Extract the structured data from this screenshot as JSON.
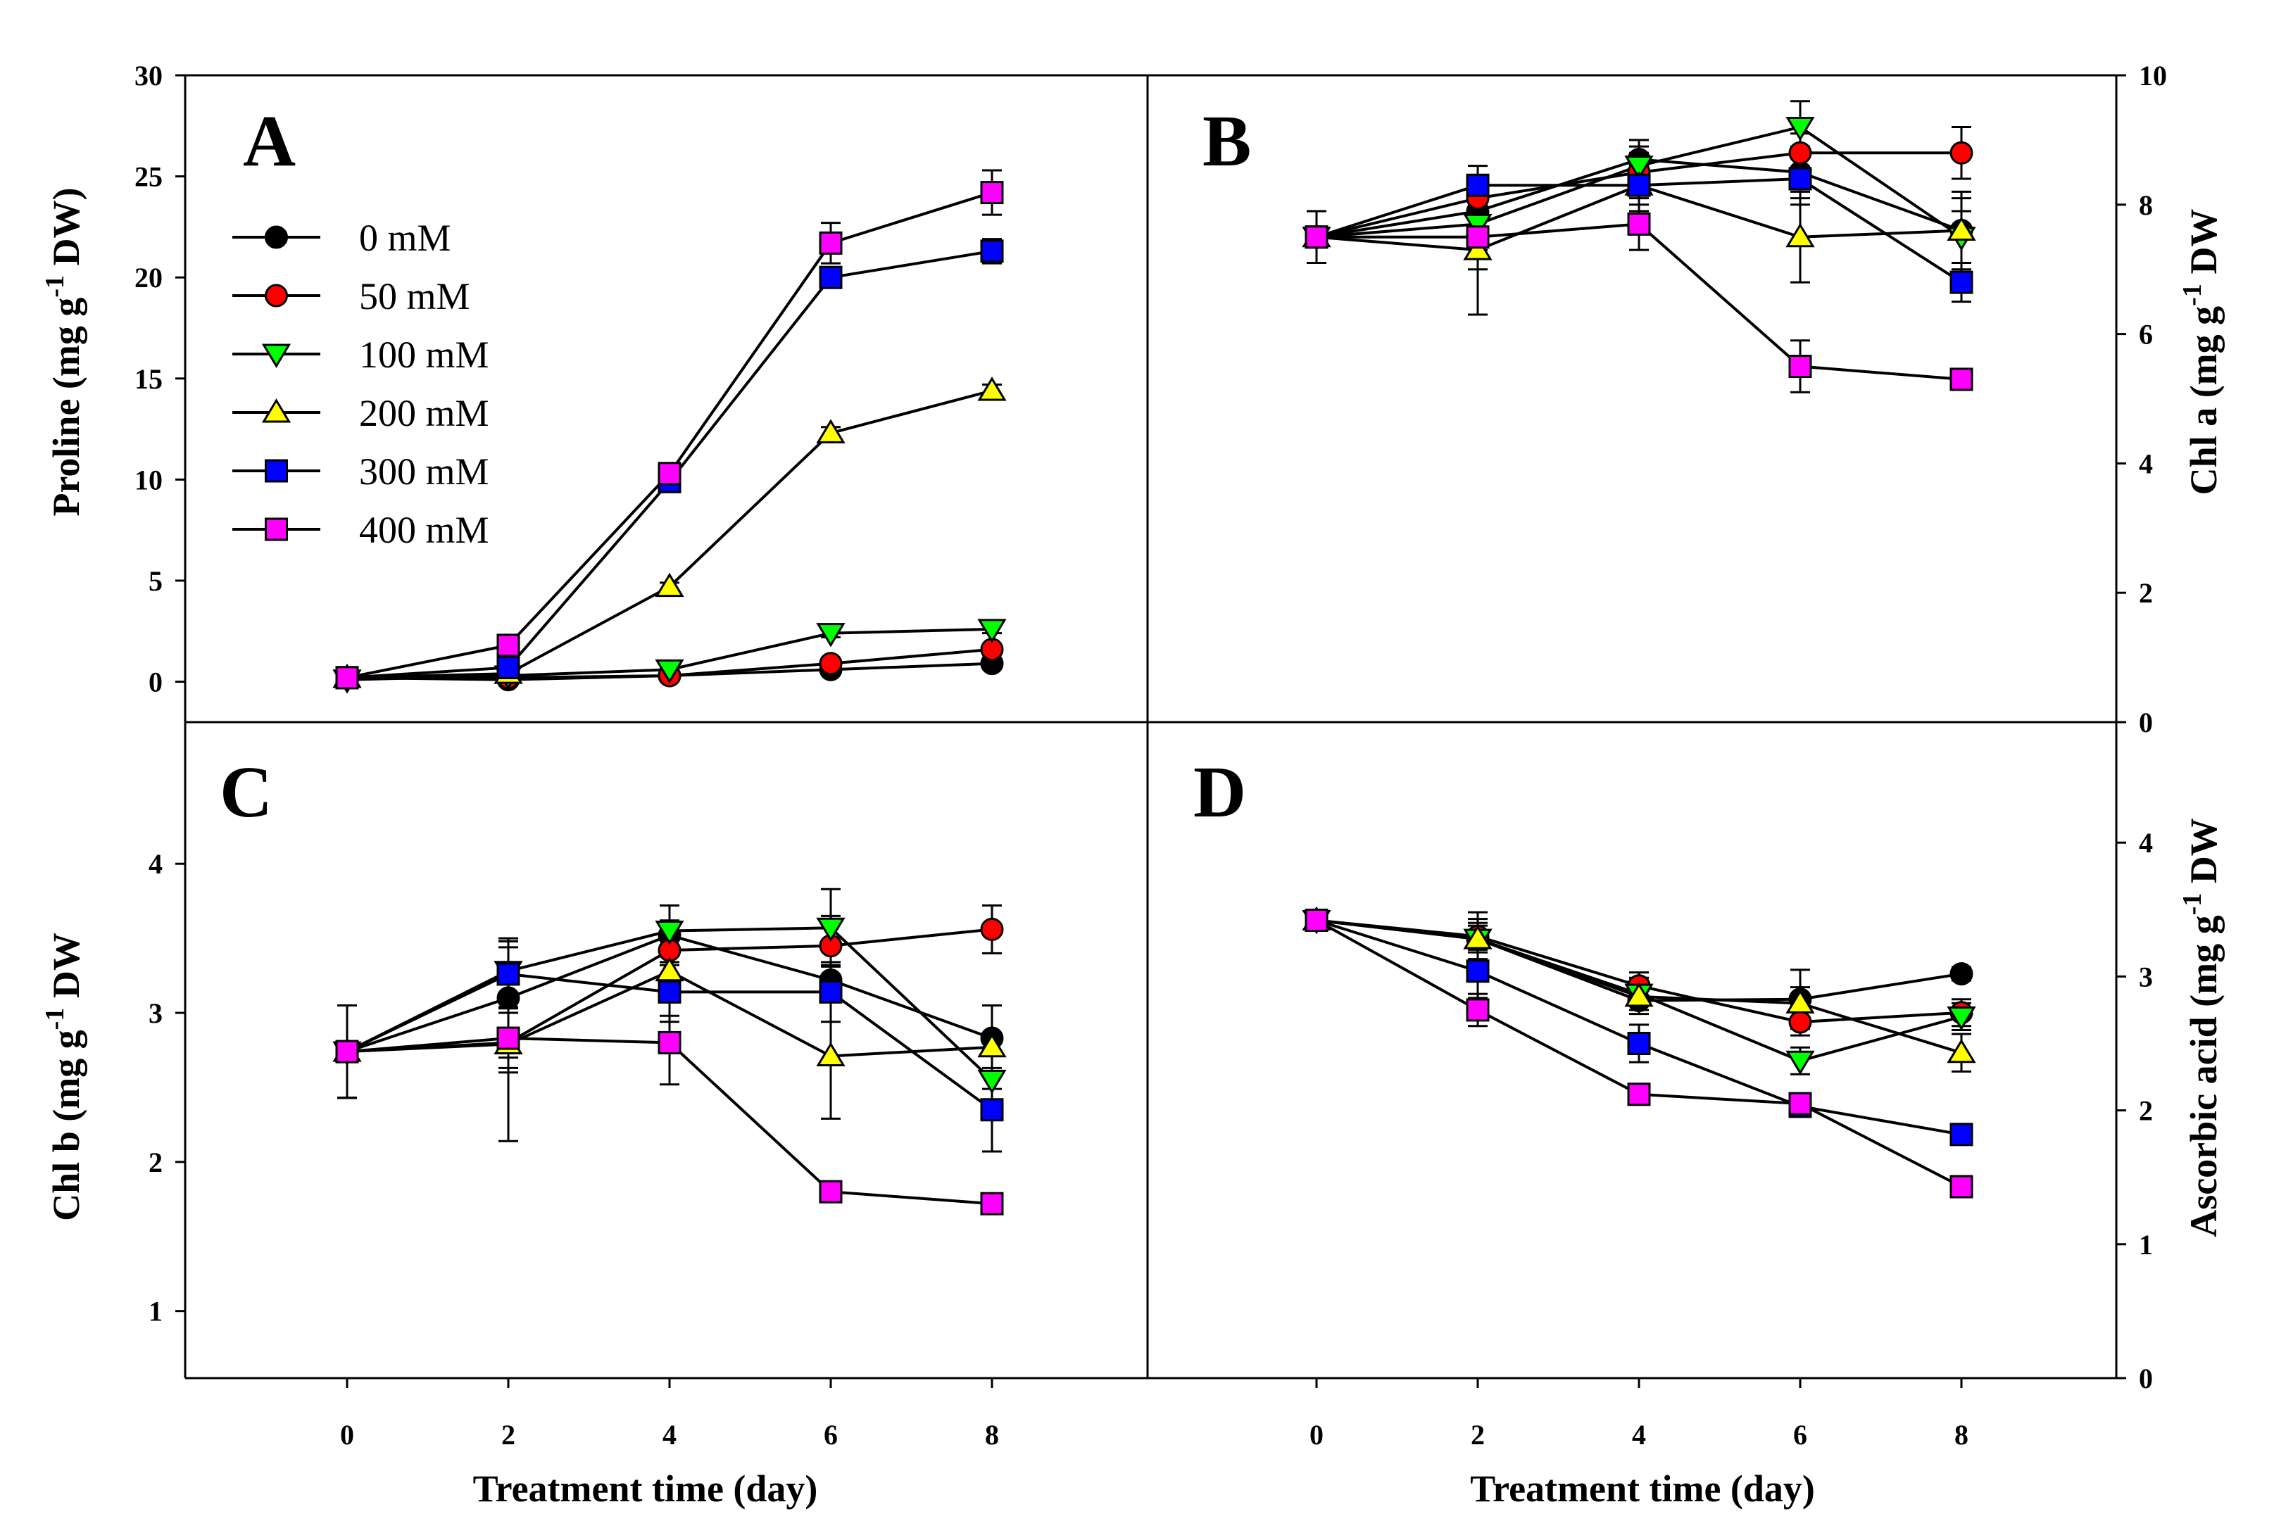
{
  "chart_data": {
    "type": "line",
    "x": [
      0,
      2,
      4,
      6,
      8
    ],
    "xticks": [
      "0",
      "2",
      "4",
      "6",
      "8"
    ],
    "xlabel": "Treatment time (day)",
    "legend": [
      {
        "name": "0 mM",
        "color": "#000000",
        "marker": "circle"
      },
      {
        "name": "50 mM",
        "color": "#ff0000",
        "marker": "circle"
      },
      {
        "name": "100 mM",
        "color": "#00ff00",
        "marker": "triangle-down"
      },
      {
        "name": "200 mM",
        "color": "#ffff00",
        "marker": "triangle-up"
      },
      {
        "name": "300 mM",
        "color": "#0000ff",
        "marker": "square"
      },
      {
        "name": "400 mM",
        "color": "#ff00ff",
        "marker": "square"
      }
    ],
    "panels": [
      {
        "id": "A",
        "ylabel": "Proline (mg g-1 DW)",
        "ylabel_main": "Proline (mg g",
        "ylabel_sup": "-1",
        "ylabel_tail": " DW)",
        "ylim": [
          -2,
          30
        ],
        "yticks": [
          0,
          5,
          10,
          15,
          20,
          25,
          30
        ],
        "series": [
          {
            "name": "0 mM",
            "values": [
              0.2,
              0.1,
              0.3,
              0.6,
              0.9
            ],
            "errors": [
              0.1,
              0.1,
              0.1,
              0.1,
              0.2
            ]
          },
          {
            "name": "50 mM",
            "values": [
              0.2,
              0.2,
              0.3,
              0.9,
              1.6
            ],
            "errors": [
              0.1,
              0.1,
              0.1,
              0.1,
              0.2
            ]
          },
          {
            "name": "100 mM",
            "values": [
              0.1,
              0.3,
              0.6,
              2.4,
              2.6
            ],
            "errors": [
              0.1,
              0.1,
              0.1,
              0.2,
              0.2
            ]
          },
          {
            "name": "200 mM",
            "values": [
              0.2,
              0.4,
              4.7,
              12.3,
              14.4
            ],
            "errors": [
              0.1,
              0.1,
              0.2,
              0.3,
              0.3
            ]
          },
          {
            "name": "300 mM",
            "values": [
              0.2,
              0.7,
              9.9,
              20.0,
              21.3
            ],
            "errors": [
              0.1,
              0.1,
              0.3,
              0.5,
              0.6
            ]
          },
          {
            "name": "400 mM",
            "values": [
              0.2,
              1.8,
              10.3,
              21.7,
              24.2
            ],
            "errors": [
              0.1,
              0.2,
              0.4,
              1.0,
              1.1
            ]
          }
        ]
      },
      {
        "id": "B",
        "ylabel": "Chl a (mg g-1 DW)",
        "ylabel_main": "Chl a (mg g",
        "ylabel_sup": "-1",
        "ylabel_tail": " DW",
        "ylim": [
          0,
          10
        ],
        "yticks": [
          0,
          2,
          4,
          6,
          8,
          10
        ],
        "series": [
          {
            "name": "0 mM",
            "values": [
              7.5,
              7.9,
              8.7,
              8.5,
              7.6
            ],
            "errors": [
              0.4,
              0.4,
              0.3,
              0.4,
              0.6
            ]
          },
          {
            "name": "50 mM",
            "values": [
              7.5,
              8.1,
              8.5,
              8.8,
              8.8
            ],
            "errors": [
              0.4,
              0.3,
              0.3,
              0.3,
              0.4
            ]
          },
          {
            "name": "100 mM",
            "values": [
              7.5,
              7.7,
              8.6,
              9.2,
              7.5
            ],
            "errors": [
              0.4,
              0.4,
              0.3,
              0.4,
              0.4
            ]
          },
          {
            "name": "200 mM",
            "values": [
              7.5,
              7.3,
              8.3,
              7.5,
              7.6
            ],
            "errors": [
              0.4,
              1.0,
              0.4,
              0.7,
              0.5
            ]
          },
          {
            "name": "300 mM",
            "values": [
              7.5,
              8.3,
              8.3,
              8.4,
              6.8
            ],
            "errors": [
              0.4,
              0.3,
              0.3,
              0.4,
              0.3
            ]
          },
          {
            "name": "400 mM",
            "values": [
              7.5,
              7.5,
              7.7,
              5.5,
              5.3
            ],
            "errors": [
              0.4,
              0.5,
              0.4,
              0.4,
              0.15
            ]
          }
        ]
      },
      {
        "id": "C",
        "ylabel": "Chl b (mg g-1 DW)",
        "ylabel_main": "Chl b (mg g",
        "ylabel_sup": "-1",
        "ylabel_tail": " DW",
        "ylim": [
          0.55,
          4.95
        ],
        "yticks": [
          1,
          2,
          3,
          4
        ],
        "series": [
          {
            "name": "0 mM",
            "values": [
              2.74,
              3.1,
              3.52,
              3.22,
              2.83
            ],
            "errors": [
              0.31,
              0.4,
              0.2,
              0.1,
              0.22
            ]
          },
          {
            "name": "50 mM",
            "values": [
              2.74,
              2.8,
              3.42,
              3.45,
              3.56
            ],
            "errors": [
              0.31,
              0.2,
              0.2,
              0.2,
              0.16
            ]
          },
          {
            "name": "100 mM",
            "values": [
              2.74,
              3.28,
              3.55,
              3.57,
              2.55
            ],
            "errors": [
              0.31,
              0.2,
              0.17,
              0.26,
              0.2
            ]
          },
          {
            "name": "200 mM",
            "values": [
              2.74,
              2.79,
              3.28,
              2.71,
              2.77
            ],
            "errors": [
              0.31,
              0.65,
              0.3,
              0.42,
              0.28
            ]
          },
          {
            "name": "300 mM",
            "values": [
              2.74,
              3.26,
              3.14,
              3.14,
              2.35
            ],
            "errors": [
              0.31,
              0.22,
              0.2,
              0.2,
              0.28
            ]
          },
          {
            "name": "400 mM",
            "values": [
              2.74,
              2.83,
              2.8,
              1.8,
              1.72
            ],
            "errors": [
              0.31,
              0.2,
              0.28,
              0.06,
              0.03
            ]
          }
        ]
      },
      {
        "id": "D",
        "ylabel": "Ascorbic acid (mg g-1 DW)",
        "ylabel_main": "Ascorbic acid (mg g",
        "ylabel_sup": "-1",
        "ylabel_tail": " DW",
        "ylim": [
          0,
          4.9
        ],
        "yticks": [
          0,
          1,
          2,
          3,
          4
        ],
        "series": [
          {
            "name": "0 mM",
            "values": [
              3.42,
              3.28,
              2.82,
              2.83,
              3.02
            ],
            "errors": [
              0.06,
              0.1,
              0.1,
              0.22,
              0.05
            ]
          },
          {
            "name": "50 mM",
            "values": [
              3.42,
              3.3,
              2.93,
              2.66,
              2.73
            ],
            "errors": [
              0.06,
              0.1,
              0.1,
              0.1,
              0.1
            ]
          },
          {
            "name": "100 mM",
            "values": [
              3.42,
              3.28,
              2.87,
              2.37,
              2.7
            ],
            "errors": [
              0.06,
              0.15,
              0.12,
              0.1,
              0.1
            ]
          },
          {
            "name": "200 mM",
            "values": [
              3.42,
              3.28,
              2.85,
              2.8,
              2.43
            ],
            "errors": [
              0.06,
              0.2,
              0.1,
              0.12,
              0.14
            ]
          },
          {
            "name": "300 mM",
            "values": [
              3.42,
              3.04,
              2.5,
              2.03,
              1.82
            ],
            "errors": [
              0.06,
              0.2,
              0.14,
              0.05,
              0.04
            ]
          },
          {
            "name": "400 mM",
            "values": [
              3.42,
              2.75,
              2.12,
              2.05,
              1.43
            ],
            "errors": [
              0.06,
              0.12,
              0.06,
              0.05,
              0.04
            ]
          }
        ]
      }
    ]
  }
}
